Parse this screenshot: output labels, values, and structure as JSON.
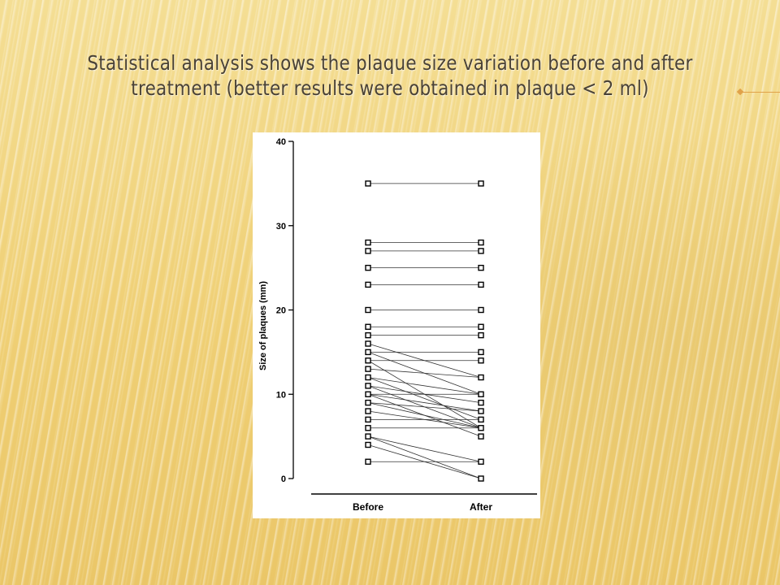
{
  "slide": {
    "title": "Statistical analysis shows the plaque size variation before and after treatment (better results were obtained in plaque < 2 ml)"
  },
  "chart_data": {
    "type": "scatter",
    "subtype": "paired before-after",
    "title": "",
    "xlabel": "",
    "ylabel": "Size of plaques (mm)",
    "categories": [
      "Before",
      "After"
    ],
    "ylim": [
      0,
      40
    ],
    "yticks": [
      "0",
      "10",
      "20",
      "30",
      "40"
    ],
    "grid": false,
    "legend": "none",
    "pairs": [
      [
        35,
        35
      ],
      [
        28,
        28
      ],
      [
        27,
        27
      ],
      [
        25,
        25
      ],
      [
        23,
        23
      ],
      [
        20,
        20
      ],
      [
        18,
        18
      ],
      [
        17,
        17
      ],
      [
        16,
        12
      ],
      [
        15,
        15
      ],
      [
        15,
        10
      ],
      [
        14,
        14
      ],
      [
        14,
        6
      ],
      [
        13,
        12
      ],
      [
        12,
        10
      ],
      [
        12,
        7
      ],
      [
        11,
        9
      ],
      [
        11,
        6
      ],
      [
        10,
        8
      ],
      [
        10,
        5
      ],
      [
        10,
        10
      ],
      [
        9,
        8
      ],
      [
        9,
        6
      ],
      [
        8,
        6
      ],
      [
        7,
        7
      ],
      [
        6,
        6
      ],
      [
        5,
        2
      ],
      [
        5,
        0
      ],
      [
        4,
        0
      ],
      [
        2,
        2
      ]
    ]
  }
}
